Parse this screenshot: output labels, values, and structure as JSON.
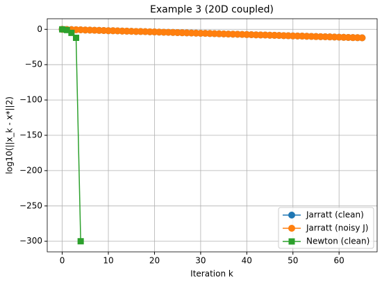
{
  "chart_data": {
    "type": "line",
    "title": "Example 3 (20D coupled)",
    "xlabel": "Iteration k",
    "ylabel": "log10(||x_k - x*||2)",
    "xlim": [
      -3.25,
      68.25
    ],
    "ylim": [
      -315,
      15
    ],
    "xticks": [
      0,
      10,
      20,
      30,
      40,
      50,
      60
    ],
    "yticks": [
      {
        "value": -300,
        "label": "−300"
      },
      {
        "value": -250,
        "label": "−250"
      },
      {
        "value": -200,
        "label": "−200"
      },
      {
        "value": -150,
        "label": "−150"
      },
      {
        "value": -100,
        "label": "−100"
      },
      {
        "value": -50,
        "label": "−50"
      },
      0
    ],
    "grid": true,
    "legend": "lower right",
    "series": [
      {
        "name": "Jarratt (clean)",
        "color": "#1f77b4",
        "marker": "circle",
        "x": [
          0,
          1,
          2,
          3,
          4,
          5,
          6,
          7,
          8,
          9,
          10,
          11,
          12,
          13,
          14,
          15,
          16,
          17,
          18,
          19,
          20,
          21,
          22,
          23,
          24,
          25,
          26,
          27,
          28,
          29,
          30,
          31,
          32,
          33,
          34,
          35,
          36,
          37,
          38,
          39,
          40,
          41,
          42,
          43,
          44,
          45,
          46,
          47,
          48,
          49,
          50,
          51,
          52,
          53,
          54,
          55,
          56,
          57,
          58,
          59,
          60,
          61,
          62,
          63,
          64,
          65
        ],
        "values": [
          0,
          -0.2,
          -0.4,
          -0.6,
          -0.7,
          -0.9,
          -1.1,
          -1.3,
          -1.5,
          -1.7,
          -1.9,
          -2.0,
          -2.2,
          -2.4,
          -2.6,
          -2.8,
          -3.0,
          -3.1,
          -3.3,
          -3.5,
          -3.7,
          -3.9,
          -4.1,
          -4.3,
          -4.4,
          -4.6,
          -4.8,
          -5.0,
          -5.2,
          -5.4,
          -5.6,
          -5.7,
          -5.9,
          -6.1,
          -6.3,
          -6.5,
          -6.7,
          -6.8,
          -7.0,
          -7.2,
          -7.4,
          -7.6,
          -7.8,
          -8.0,
          -8.1,
          -8.3,
          -8.5,
          -8.7,
          -8.9,
          -9.1,
          -9.3,
          -9.4,
          -9.6,
          -9.8,
          -10.0,
          -10.2,
          -10.4,
          -10.5,
          -10.7,
          -10.9,
          -11.1,
          -11.3,
          -11.5,
          -11.7,
          -11.8,
          -12.0
        ]
      },
      {
        "name": "Jarratt (noisy J)",
        "color": "#ff7f0e",
        "marker": "circle",
        "x": [
          0,
          1,
          2,
          3,
          4,
          5,
          6,
          7,
          8,
          9,
          10,
          11,
          12,
          13,
          14,
          15,
          16,
          17,
          18,
          19,
          20,
          21,
          22,
          23,
          24,
          25,
          26,
          27,
          28,
          29,
          30,
          31,
          32,
          33,
          34,
          35,
          36,
          37,
          38,
          39,
          40,
          41,
          42,
          43,
          44,
          45,
          46,
          47,
          48,
          49,
          50,
          51,
          52,
          53,
          54,
          55,
          56,
          57,
          58,
          59,
          60,
          61,
          62,
          63,
          64,
          65
        ],
        "values": [
          0,
          -0.2,
          -0.4,
          -0.6,
          -0.7,
          -0.9,
          -1.1,
          -1.3,
          -1.5,
          -1.7,
          -1.9,
          -2.0,
          -2.2,
          -2.4,
          -2.6,
          -2.8,
          -3.0,
          -3.1,
          -3.3,
          -3.5,
          -3.7,
          -3.9,
          -4.1,
          -4.3,
          -4.4,
          -4.6,
          -4.8,
          -5.0,
          -5.2,
          -5.4,
          -5.6,
          -5.7,
          -5.9,
          -6.1,
          -6.3,
          -6.5,
          -6.7,
          -6.8,
          -7.0,
          -7.2,
          -7.4,
          -7.6,
          -7.8,
          -8.0,
          -8.1,
          -8.3,
          -8.5,
          -8.7,
          -8.9,
          -9.1,
          -9.3,
          -9.4,
          -9.6,
          -9.8,
          -10.0,
          -10.2,
          -10.4,
          -10.5,
          -10.7,
          -10.9,
          -11.1,
          -11.3,
          -11.5,
          -11.7,
          -11.8,
          -12.0
        ]
      },
      {
        "name": "Newton (clean)",
        "color": "#2ca02c",
        "marker": "square",
        "x": [
          0,
          1,
          2,
          3,
          4
        ],
        "values": [
          0,
          -1,
          -5,
          -12,
          -300
        ]
      }
    ]
  }
}
